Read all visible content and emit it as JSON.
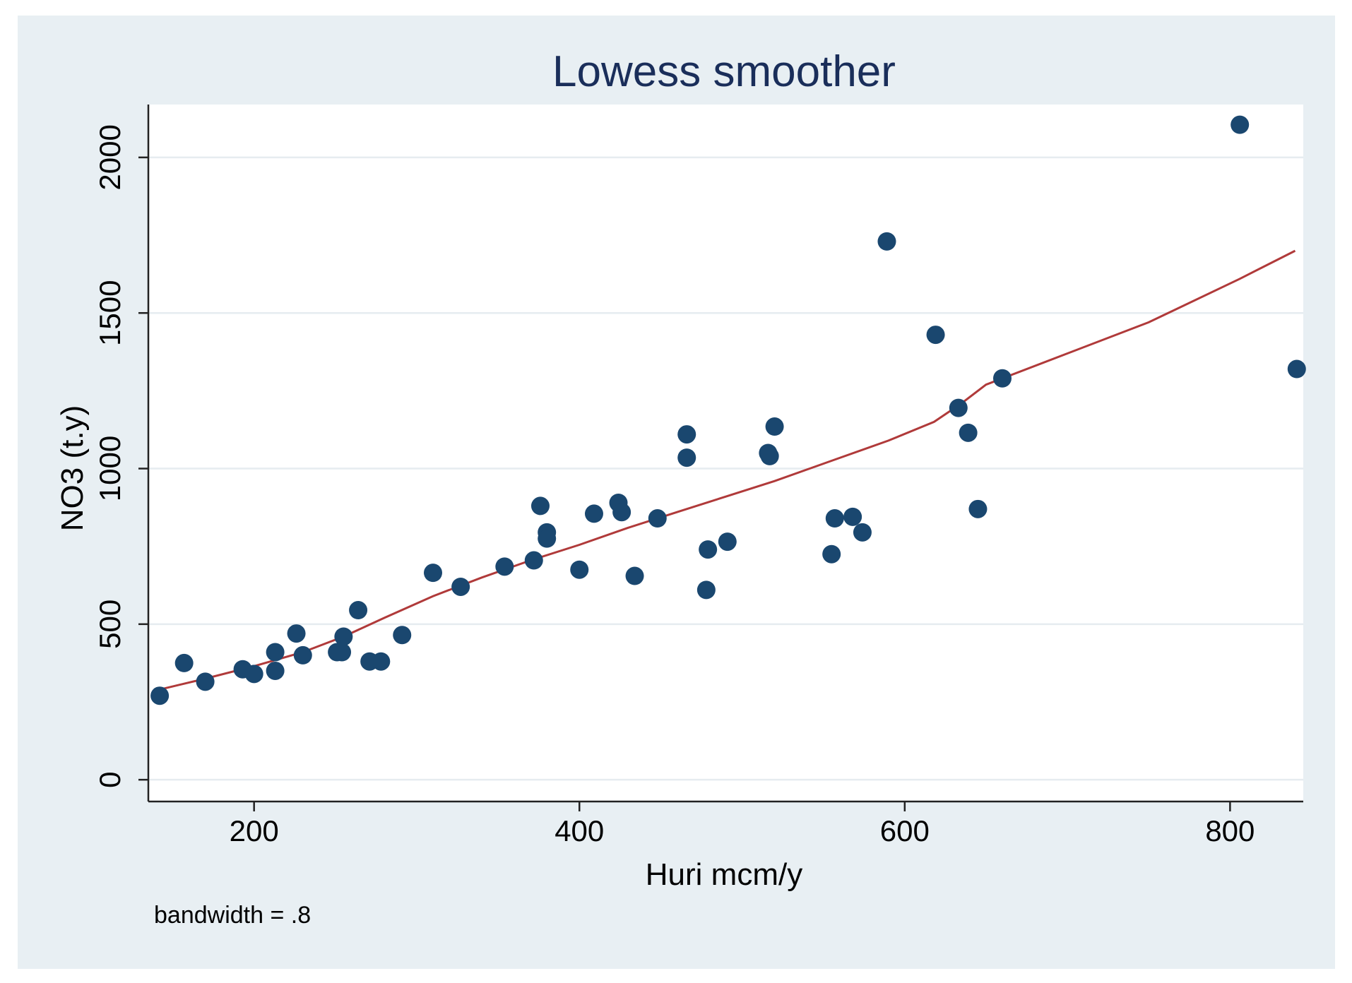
{
  "chart_data": {
    "type": "scatter",
    "title": "Lowess smoother",
    "xlabel": "Huri mcm/y",
    "ylabel": "NO3 (t.y)",
    "note": "bandwidth = .8",
    "xlim": [
      135,
      845
    ],
    "ylim": [
      -70,
      2170
    ],
    "xticks": [
      200,
      400,
      600,
      800
    ],
    "yticks": [
      0,
      500,
      1000,
      1500,
      2000
    ],
    "xtick_labels": [
      "200",
      "400",
      "600",
      "800"
    ],
    "ytick_labels": [
      "0",
      "500",
      "1000",
      "1500",
      "2000"
    ],
    "grid": true,
    "colors": {
      "background": "#e8eff3",
      "plot_area": "#ffffff",
      "title": "#1a2e5a",
      "point": "#1a476f",
      "line": "#b03a3a",
      "grid": "#e6ecf0",
      "axis": "#222222"
    },
    "series": [
      {
        "name": "NO3 (t.y)",
        "kind": "scatter",
        "x": [
          142,
          157,
          170,
          193,
          200,
          213,
          213,
          226,
          230,
          251,
          254,
          255,
          264,
          271,
          278,
          291,
          310,
          327,
          354,
          372,
          376,
          380,
          380,
          400,
          409,
          424,
          426,
          434,
          448,
          466,
          466,
          478,
          479,
          491,
          516,
          517,
          520,
          555,
          557,
          568,
          574,
          589,
          619,
          633,
          639,
          645,
          660,
          806,
          841
        ],
        "y": [
          270,
          375,
          315,
          355,
          340,
          410,
          350,
          470,
          400,
          410,
          410,
          460,
          545,
          380,
          380,
          465,
          665,
          620,
          685,
          705,
          880,
          795,
          775,
          675,
          855,
          890,
          860,
          655,
          840,
          1110,
          1035,
          610,
          740,
          765,
          1050,
          1040,
          1135,
          725,
          840,
          845,
          795,
          1730,
          1430,
          1195,
          1115,
          870,
          1290,
          2105,
          1320
        ]
      },
      {
        "name": "lowess (bandwidth = .8)",
        "kind": "line",
        "x": [
          142,
          170,
          200,
          230,
          255,
          280,
          310,
          340,
          370,
          400,
          430,
          460,
          490,
          520,
          555,
          590,
          618,
          635,
          650,
          700,
          750,
          806,
          840
        ],
        "y": [
          290,
          325,
          365,
          410,
          460,
          520,
          590,
          650,
          705,
          755,
          810,
          860,
          910,
          960,
          1025,
          1090,
          1150,
          1210,
          1270,
          1370,
          1470,
          1610,
          1700
        ]
      }
    ]
  }
}
